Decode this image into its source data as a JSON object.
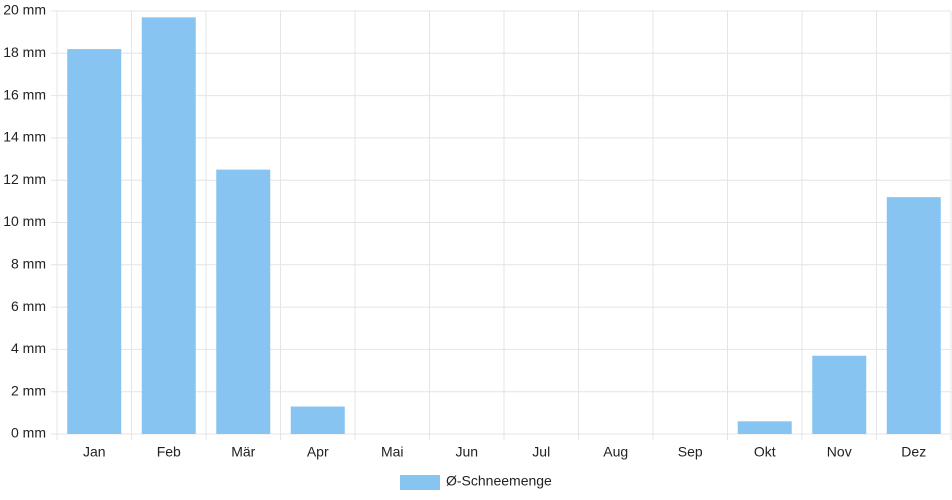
{
  "chart_data": {
    "type": "bar",
    "categories": [
      "Jan",
      "Feb",
      "Mär",
      "Apr",
      "Mai",
      "Jun",
      "Jul",
      "Aug",
      "Sep",
      "Okt",
      "Nov",
      "Dez"
    ],
    "series": [
      {
        "name": "Ø-Schneemenge",
        "color": "#88c4f2",
        "values": [
          18.2,
          19.7,
          12.5,
          1.3,
          0,
          0,
          0,
          0,
          0,
          0.6,
          3.7,
          11.2
        ]
      }
    ],
    "ylim": [
      0,
      20
    ],
    "yticks": [
      {
        "value": 0,
        "label": "0 mm"
      },
      {
        "value": 2,
        "label": "2 mm"
      },
      {
        "value": 4,
        "label": "4 mm"
      },
      {
        "value": 6,
        "label": "6 mm"
      },
      {
        "value": 8,
        "label": "8 mm"
      },
      {
        "value": 10,
        "label": "10 mm"
      },
      {
        "value": 12,
        "label": "12 mm"
      },
      {
        "value": 14,
        "label": "14 mm"
      },
      {
        "value": 16,
        "label": "16 mm"
      },
      {
        "value": 18,
        "label": "18 mm"
      },
      {
        "value": 20,
        "label": "20 mm"
      }
    ],
    "grid": true,
    "legend": "bottom"
  }
}
